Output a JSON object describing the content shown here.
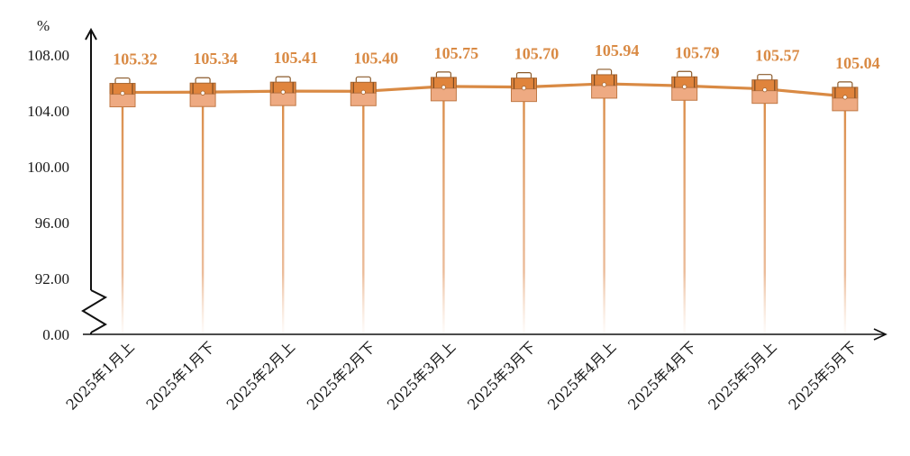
{
  "chart_data": {
    "type": "line",
    "unit_label": "%",
    "categories": [
      "2025年1月上",
      "2025年1月下",
      "2025年2月上",
      "2025年2月下",
      "2025年3月上",
      "2025年3月下",
      "2025年4月上",
      "2025年4月下",
      "2025年5月上",
      "2025年5月下"
    ],
    "values": [
      105.32,
      105.34,
      105.41,
      105.4,
      105.75,
      105.7,
      105.94,
      105.79,
      105.57,
      105.04
    ],
    "data_labels": [
      "105.32",
      "105.34",
      "105.41",
      "105.40",
      "105.75",
      "105.70",
      "105.94",
      "105.79",
      "105.57",
      "105.04"
    ],
    "y_ticks": [
      "0.00",
      "92.00",
      "96.00",
      "100.00",
      "104.00",
      "108.00"
    ],
    "y_tick_values": [
      0,
      92,
      96,
      100,
      104,
      108
    ],
    "axis_break": "between 0.00 and 92.00",
    "grid": false,
    "colors": {
      "line": "#d98a44",
      "marker": "#e0843c",
      "marker_light": "#eeaa82",
      "drop_line": "#d98a44",
      "label": "#d98a44",
      "axis": "#111111"
    },
    "marker_icon": "briefcase-icon"
  }
}
